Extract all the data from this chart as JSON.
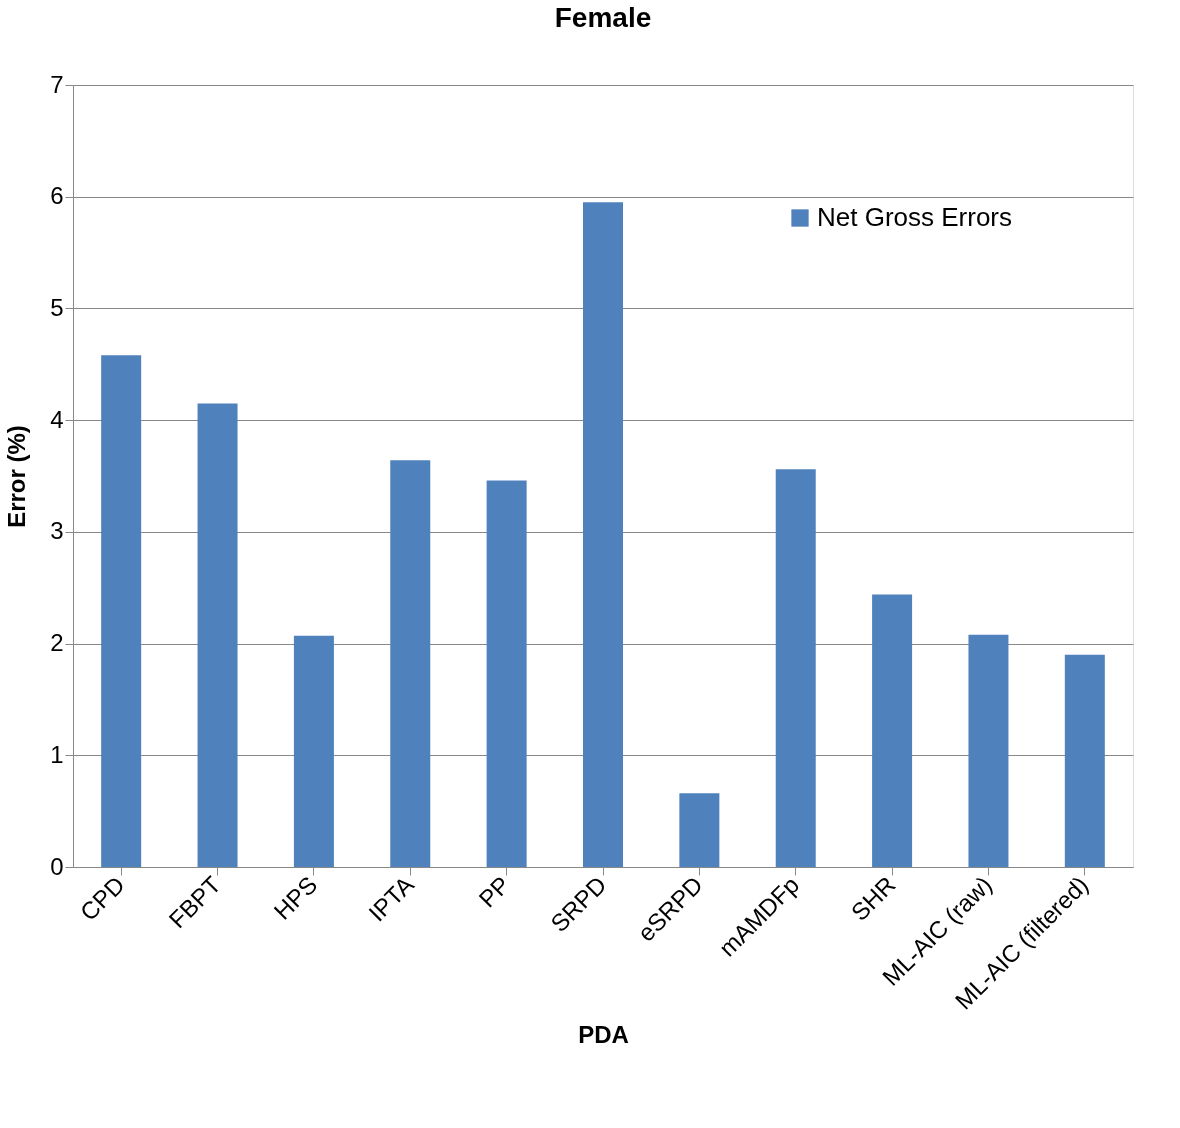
{
  "chart_data": {
    "type": "bar",
    "title": "Female",
    "xlabel": "PDA",
    "ylabel": "Error (%)",
    "categories": [
      "CPD",
      "FBPT",
      "HPS",
      "IPTA",
      "PP",
      "SRPD",
      "eSRPD",
      "mAMDFp",
      "SHR",
      "ML-AIC (raw)",
      "ML-AIC (filtered)"
    ],
    "series": [
      {
        "name": "Net Gross Errors",
        "color": "#4f81bd",
        "values": [
          4.58,
          4.15,
          2.07,
          3.64,
          3.46,
          5.95,
          0.66,
          3.56,
          2.44,
          2.08,
          1.9
        ]
      }
    ],
    "ylim": [
      0,
      7
    ],
    "yticks": [
      0,
      1,
      2,
      3,
      4,
      5,
      6,
      7
    ],
    "grid": "y",
    "legend": "top right"
  }
}
